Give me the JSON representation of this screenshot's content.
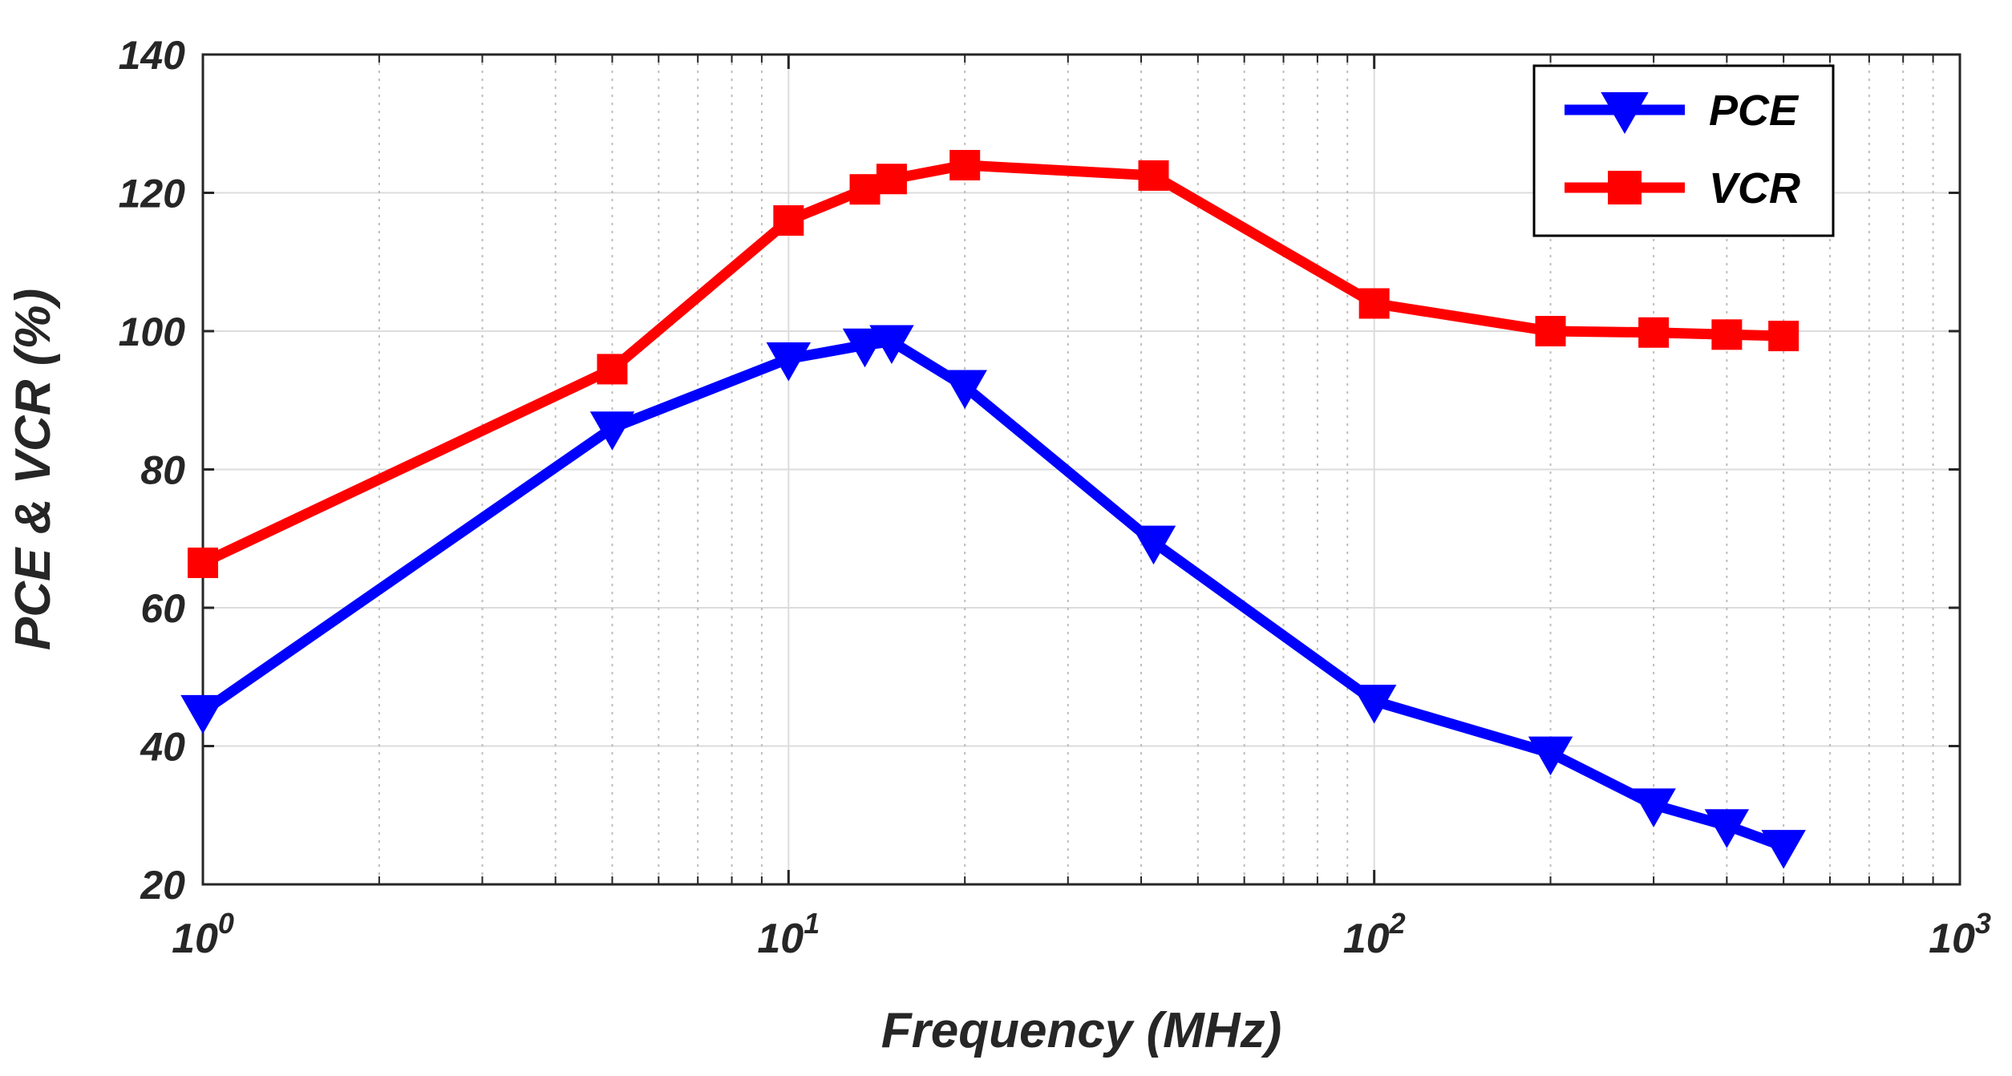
{
  "chart_data": {
    "type": "line",
    "title": "",
    "xlabel": "Frequency (MHz)",
    "ylabel": "PCE & VCR (%)",
    "xscale": "log",
    "xlim": [
      1,
      1000
    ],
    "ylim": [
      20,
      140
    ],
    "grid": true,
    "legend_position": "top-right",
    "x_ticks": [
      {
        "value": 1,
        "base": "10",
        "exp": "0"
      },
      {
        "value": 10,
        "base": "10",
        "exp": "1"
      },
      {
        "value": 100,
        "base": "10",
        "exp": "2"
      },
      {
        "value": 1000,
        "base": "10",
        "exp": "3"
      }
    ],
    "y_ticks": [
      20,
      40,
      60,
      80,
      100,
      120,
      140
    ],
    "series": [
      {
        "name": "PCE",
        "color": "#0000ff",
        "marker": "triangle-down",
        "x": [
          1,
          5,
          10,
          13.5,
          15,
          20,
          42,
          100,
          200,
          300,
          400,
          500
        ],
        "y": [
          45,
          86,
          96,
          98,
          98.5,
          92,
          69.5,
          46.5,
          39,
          31.5,
          28.5,
          25.5
        ]
      },
      {
        "name": "VCR",
        "color": "#ff0000",
        "marker": "square",
        "x": [
          1,
          5,
          10,
          13.5,
          15,
          20,
          42,
          100,
          200,
          300,
          400,
          500
        ],
        "y": [
          66.5,
          94.5,
          116,
          120.5,
          122,
          124,
          122.5,
          104,
          100,
          99.8,
          99.5,
          99.3
        ]
      }
    ]
  }
}
